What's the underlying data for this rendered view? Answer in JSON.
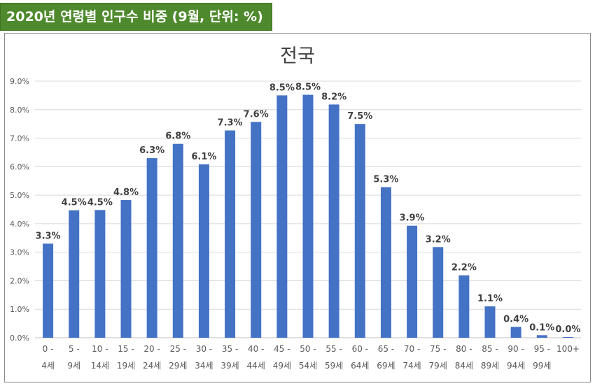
{
  "header": {
    "title": "2020년 연령별 인구수 비중 (9월, 단위: %)"
  },
  "chart_data": {
    "type": "bar",
    "title": "전국",
    "xlabel": "",
    "ylabel": "",
    "ylim": [
      0,
      9
    ],
    "y_ticks": [
      "0.0%",
      "1.0%",
      "2.0%",
      "3.0%",
      "4.0%",
      "5.0%",
      "6.0%",
      "7.0%",
      "8.0%",
      "9.0%"
    ],
    "grid": true,
    "categories": [
      [
        "0 -",
        "4세"
      ],
      [
        "5 -",
        "9세"
      ],
      [
        "10 -",
        "14세"
      ],
      [
        "15 -",
        "19세"
      ],
      [
        "20 -",
        "24세"
      ],
      [
        "25 -",
        "29세"
      ],
      [
        "30 -",
        "34세"
      ],
      [
        "35 -",
        "39세"
      ],
      [
        "40 -",
        "44세"
      ],
      [
        "45 -",
        "49세"
      ],
      [
        "50 -",
        "54세"
      ],
      [
        "55 -",
        "59세"
      ],
      [
        "60 -",
        "64세"
      ],
      [
        "65 -",
        "69세"
      ],
      [
        "70 -",
        "74세"
      ],
      [
        "75 -",
        "79세"
      ],
      [
        "80 -",
        "84세"
      ],
      [
        "85 -",
        "89세"
      ],
      [
        "90 -",
        "94세"
      ],
      [
        "95 -",
        "99세"
      ],
      [
        "100+",
        ""
      ]
    ],
    "values": [
      3.3,
      4.47,
      4.48,
      4.83,
      6.3,
      6.8,
      6.08,
      7.27,
      7.57,
      8.5,
      8.52,
      8.18,
      7.5,
      5.28,
      3.93,
      3.18,
      2.19,
      1.1,
      0.38,
      0.09,
      0.02
    ],
    "data_labels": [
      "3.3%",
      "4.5%",
      "4.5%",
      "4.8%",
      "6.3%",
      "6.8%",
      "6.1%",
      "7.3%",
      "7.6%",
      "8.5%",
      "8.5%",
      "8.2%",
      "7.5%",
      "5.3%",
      "3.9%",
      "3.2%",
      "2.2%",
      "1.1%",
      "0.4%",
      "0.1%",
      "0.0%"
    ],
    "bar_color": "#4472c4"
  }
}
